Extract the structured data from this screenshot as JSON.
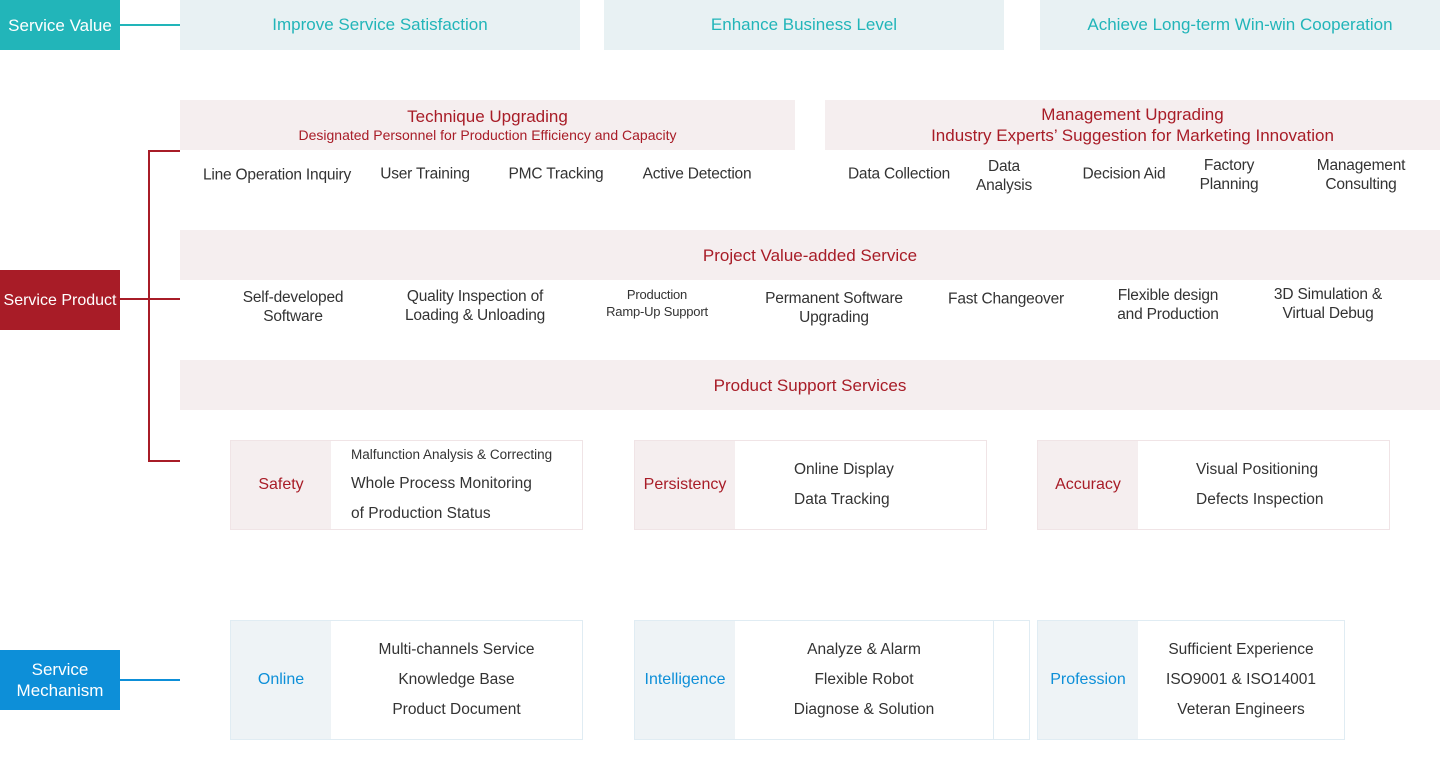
{
  "colors": {
    "value": "#22b5b9",
    "product": "#a81c27",
    "mechanism": "#0d8fd8"
  },
  "service_value": {
    "label": "Service Value",
    "items": [
      "Improve Service Satisfaction",
      "Enhance Business Level",
      "Achieve Long-term Win-win Cooperation"
    ]
  },
  "service_product": {
    "label": "Service Product",
    "technique": {
      "title": "Technique Upgrading",
      "subtitle": "Designated Personnel for Production Efficiency and Capacity",
      "items": [
        "Line Operation Inquiry",
        "User Training",
        "PMC Tracking",
        "Active Detection"
      ]
    },
    "management": {
      "title": "Management Upgrading",
      "subtitle": "Industry Experts’ Suggestion for Marketing Innovation",
      "items": [
        "Data Collection",
        "Data\nAnalysis",
        "Decision Aid",
        "Factory\nPlanning",
        "Management\nConsulting"
      ]
    },
    "project": {
      "title": "Project Value-added Service",
      "items": [
        "Self-developed\nSoftware",
        "Quality Inspection of\nLoading & Unloading",
        "Production\nRamp-Up Support",
        "Permanent Software\nUpgrading",
        "Fast Changeover",
        "Flexible design\nand Production",
        "3D Simulation &\nVirtual Debug"
      ]
    },
    "support": {
      "title": "Product Support Services",
      "cards": [
        {
          "label": "Safety",
          "items": [
            "Malfunction Analysis & Correcting",
            "Whole Process Monitoring",
            "of Production Status"
          ]
        },
        {
          "label": "Persistency",
          "items": [
            "Online Display",
            "Data Tracking"
          ]
        },
        {
          "label": "Accuracy",
          "items": [
            "Visual Positioning",
            "Defects Inspection"
          ]
        }
      ]
    }
  },
  "service_mechanism": {
    "label": "Service\nMechanism",
    "cards": [
      {
        "label": "Online",
        "items": [
          "Multi-channels Service",
          "Knowledge Base",
          "Product Document"
        ]
      },
      {
        "label": "Intelligence",
        "items": [
          "Analyze & Alarm",
          "Flexible Robot",
          "Diagnose & Solution"
        ]
      },
      {
        "label": "Profession",
        "items": [
          "Sufficient Experience",
          "ISO9001 & ISO14001",
          "Veteran Engineers"
        ]
      }
    ]
  }
}
